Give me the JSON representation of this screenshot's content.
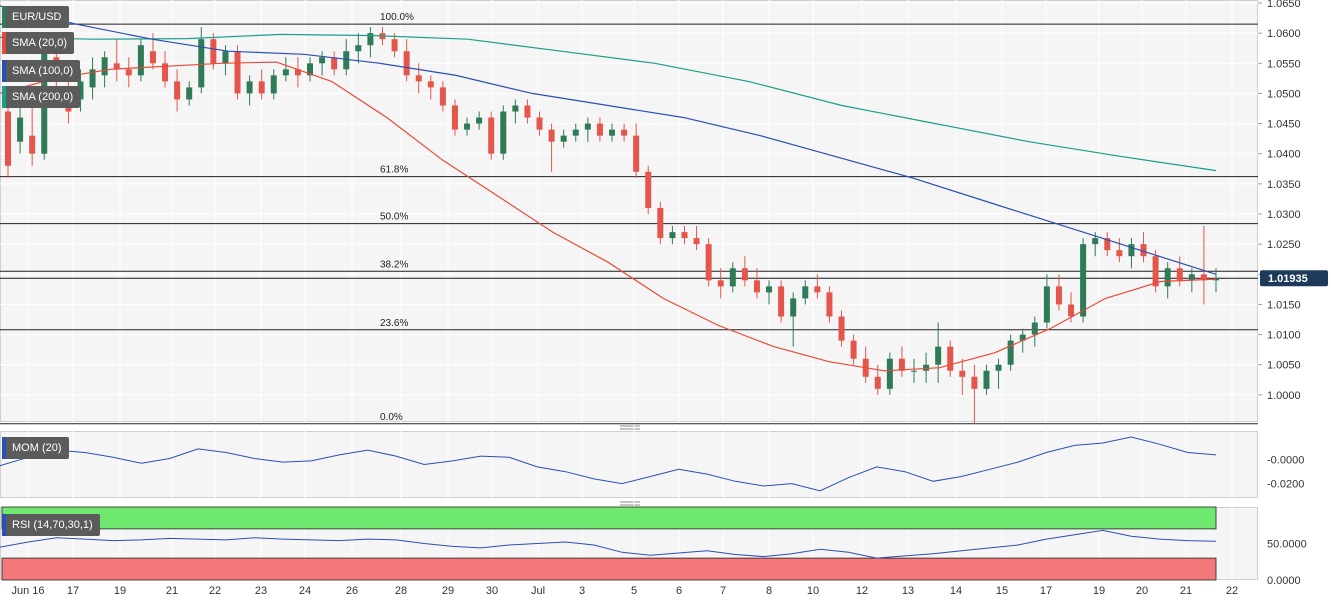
{
  "chart_data": [
    {
      "type": "candlestick",
      "symbol": "EUR/USD",
      "price_label": "1.01935",
      "last_price": 1.01935,
      "ylim": [
        0.9955,
        1.0655
      ],
      "y_ticks": [
        "1.0650",
        "1.0600",
        "1.0550",
        "1.0500",
        "1.0450",
        "1.0400",
        "1.0350",
        "1.0300",
        "1.0250",
        "1.0200",
        "1.0150",
        "1.0100",
        "1.0050",
        "1.0000"
      ],
      "x_labels": [
        "Jun 16",
        "17",
        "19",
        "21",
        "22",
        "23",
        "24",
        "26",
        "28",
        "29",
        "30",
        "Jul",
        "3",
        "5",
        "6",
        "7",
        "8",
        "10",
        "12",
        "13",
        "14",
        "15",
        "17",
        "19",
        "20",
        "21",
        "22"
      ],
      "legend": [
        {
          "label": "SMA (20,0)",
          "color": "#e8493a"
        },
        {
          "label": "SMA (100,0)",
          "color": "#2a4fb5"
        },
        {
          "label": "SMA (200,0)",
          "color": "#1b9e8a"
        }
      ],
      "fibonacci": [
        {
          "label": "100.0%",
          "price": 1.0615
        },
        {
          "label": "61.8%",
          "price": 1.0362
        },
        {
          "label": "50.0%",
          "price": 1.0284
        },
        {
          "label": "38.2%",
          "price": 1.0205
        },
        {
          "label": "23.6%",
          "price": 1.0108
        },
        {
          "label": "0.0%",
          "price": 0.9952
        }
      ],
      "ohlc": [
        [
          1.047,
          1.049,
          1.036,
          1.038
        ],
        [
          1.042,
          1.05,
          1.04,
          1.046
        ],
        [
          1.043,
          1.048,
          1.038,
          1.04
        ],
        [
          1.04,
          1.06,
          1.039,
          1.058
        ],
        [
          1.056,
          1.06,
          1.05,
          1.052
        ],
        [
          1.051,
          1.054,
          1.045,
          1.047
        ],
        [
          1.049,
          1.054,
          1.047,
          1.052
        ],
        [
          1.051,
          1.056,
          1.049,
          1.054
        ],
        [
          1.053,
          1.057,
          1.051,
          1.056
        ],
        [
          1.055,
          1.059,
          1.052,
          1.054
        ],
        [
          1.054,
          1.056,
          1.051,
          1.053
        ],
        [
          1.053,
          1.059,
          1.052,
          1.058
        ],
        [
          1.057,
          1.06,
          1.054,
          1.055
        ],
        [
          1.055,
          1.057,
          1.051,
          1.052
        ],
        [
          1.052,
          1.054,
          1.047,
          1.049
        ],
        [
          1.049,
          1.052,
          1.048,
          1.051
        ],
        [
          1.051,
          1.061,
          1.05,
          1.059
        ],
        [
          1.059,
          1.06,
          1.054,
          1.055
        ],
        [
          1.055,
          1.058,
          1.053,
          1.057
        ],
        [
          1.057,
          1.058,
          1.049,
          1.05
        ],
        [
          1.05,
          1.053,
          1.048,
          1.052
        ],
        [
          1.052,
          1.054,
          1.049,
          1.05
        ],
        [
          1.05,
          1.054,
          1.049,
          1.053
        ],
        [
          1.053,
          1.056,
          1.052,
          1.054
        ],
        [
          1.054,
          1.056,
          1.051,
          1.053
        ],
        [
          1.053,
          1.056,
          1.052,
          1.055
        ],
        [
          1.055,
          1.057,
          1.053,
          1.056
        ],
        [
          1.056,
          1.057,
          1.053,
          1.054
        ],
        [
          1.054,
          1.059,
          1.053,
          1.057
        ],
        [
          1.057,
          1.06,
          1.055,
          1.058
        ],
        [
          1.058,
          1.061,
          1.056,
          1.06
        ],
        [
          1.06,
          1.061,
          1.058,
          1.059
        ],
        [
          1.059,
          1.06,
          1.056,
          1.057
        ],
        [
          1.057,
          1.059,
          1.052,
          1.053
        ],
        [
          1.053,
          1.055,
          1.05,
          1.052
        ],
        [
          1.052,
          1.053,
          1.049,
          1.051
        ],
        [
          1.051,
          1.052,
          1.047,
          1.048
        ],
        [
          1.048,
          1.049,
          1.043,
          1.044
        ],
        [
          1.044,
          1.046,
          1.043,
          1.045
        ],
        [
          1.045,
          1.047,
          1.044,
          1.046
        ],
        [
          1.046,
          1.047,
          1.039,
          1.04
        ],
        [
          1.04,
          1.048,
          1.039,
          1.047
        ],
        [
          1.047,
          1.049,
          1.045,
          1.048
        ],
        [
          1.048,
          1.049,
          1.045,
          1.046
        ],
        [
          1.046,
          1.047,
          1.043,
          1.044
        ],
        [
          1.044,
          1.045,
          1.037,
          1.042
        ],
        [
          1.042,
          1.044,
          1.041,
          1.043
        ],
        [
          1.043,
          1.045,
          1.042,
          1.044
        ],
        [
          1.044,
          1.046,
          1.042,
          1.045
        ],
        [
          1.045,
          1.046,
          1.042,
          1.043
        ],
        [
          1.043,
          1.045,
          1.042,
          1.044
        ],
        [
          1.044,
          1.045,
          1.042,
          1.043
        ],
        [
          1.043,
          1.045,
          1.036,
          1.037
        ],
        [
          1.037,
          1.038,
          1.03,
          1.031
        ],
        [
          1.031,
          1.032,
          1.025,
          1.026
        ],
        [
          1.026,
          1.028,
          1.025,
          1.027
        ],
        [
          1.027,
          1.028,
          1.025,
          1.026
        ],
        [
          1.026,
          1.028,
          1.024,
          1.025
        ],
        [
          1.025,
          1.026,
          1.018,
          1.019
        ],
        [
          1.019,
          1.021,
          1.016,
          1.018
        ],
        [
          1.018,
          1.022,
          1.017,
          1.021
        ],
        [
          1.021,
          1.023,
          1.018,
          1.019
        ],
        [
          1.019,
          1.021,
          1.016,
          1.017
        ],
        [
          1.017,
          1.019,
          1.015,
          1.018
        ],
        [
          1.018,
          1.019,
          1.012,
          1.013
        ],
        [
          1.013,
          1.017,
          1.008,
          1.016
        ],
        [
          1.016,
          1.019,
          1.015,
          1.018
        ],
        [
          1.018,
          1.02,
          1.016,
          1.017
        ],
        [
          1.017,
          1.018,
          1.012,
          1.013
        ],
        [
          1.013,
          1.014,
          1.008,
          1.009
        ],
        [
          1.009,
          1.01,
          1.005,
          1.006
        ],
        [
          1.006,
          1.008,
          1.002,
          1.003
        ],
        [
          1.003,
          1.005,
          1.0,
          1.001
        ],
        [
          1.001,
          1.007,
          1.0,
          1.006
        ],
        [
          1.006,
          1.008,
          1.003,
          1.004
        ],
        [
          1.004,
          1.006,
          1.002,
          1.004
        ],
        [
          1.004,
          1.007,
          1.002,
          1.005
        ],
        [
          1.005,
          1.012,
          1.002,
          1.008
        ],
        [
          1.008,
          1.009,
          1.003,
          1.004
        ],
        [
          1.004,
          1.006,
          1.0,
          1.003
        ],
        [
          1.003,
          1.005,
          0.9952,
          1.001
        ],
        [
          1.001,
          1.005,
          1.0,
          1.004
        ],
        [
          1.004,
          1.006,
          1.001,
          1.005
        ],
        [
          1.005,
          1.01,
          1.004,
          1.009
        ],
        [
          1.009,
          1.011,
          1.007,
          1.01
        ],
        [
          1.01,
          1.013,
          1.008,
          1.012
        ],
        [
          1.012,
          1.02,
          1.011,
          1.018
        ],
        [
          1.018,
          1.02,
          1.014,
          1.015
        ],
        [
          1.015,
          1.017,
          1.012,
          1.013
        ],
        [
          1.013,
          1.026,
          1.012,
          1.025
        ],
        [
          1.025,
          1.027,
          1.023,
          1.026
        ],
        [
          1.026,
          1.027,
          1.023,
          1.024
        ],
        [
          1.024,
          1.026,
          1.022,
          1.023
        ],
        [
          1.023,
          1.026,
          1.021,
          1.025
        ],
        [
          1.025,
          1.027,
          1.022,
          1.023
        ],
        [
          1.023,
          1.024,
          1.017,
          1.018
        ],
        [
          1.018,
          1.022,
          1.016,
          1.021
        ],
        [
          1.021,
          1.023,
          1.018,
          1.019
        ],
        [
          1.019,
          1.021,
          1.017,
          1.02
        ],
        [
          1.02,
          1.028,
          1.015,
          1.019
        ],
        [
          1.019,
          1.021,
          1.017,
          1.01935
        ]
      ],
      "sma20": [
        1.05,
        1.0525,
        1.054,
        1.0545,
        1.055,
        1.0552,
        1.052,
        1.046,
        1.039,
        1.033,
        1.027,
        1.022,
        1.016,
        1.0115,
        1.008,
        1.0055,
        1.004,
        1.0045,
        1.007,
        1.011,
        1.016,
        1.0188,
        1.0192
      ],
      "sma100": [
        1.0645,
        1.0615,
        1.059,
        1.057,
        1.0565,
        1.055,
        1.053,
        1.05,
        1.048,
        1.046,
        1.043,
        1.0395,
        1.036,
        1.032,
        1.028,
        1.024,
        1.02
      ],
      "sma200": [
        1.0593,
        1.059,
        1.0591,
        1.0598,
        1.0596,
        1.059,
        1.057,
        1.055,
        1.052,
        1.048,
        1.045,
        1.042,
        1.0395,
        1.0372
      ]
    },
    {
      "type": "line",
      "title": "MOM (20)",
      "y_ticks": [
        "-0.0000",
        "-0.0200"
      ],
      "ylim": [
        -0.032,
        0.024
      ],
      "values": [
        -0.005,
        0.002,
        0.008,
        0.006,
        0.002,
        -0.003,
        0.001,
        0.009,
        0.006,
        0.001,
        -0.002,
        -0.001,
        0.004,
        0.008,
        0.003,
        -0.004,
        -0.001,
        0.003,
        0.002,
        -0.006,
        -0.01,
        -0.016,
        -0.02,
        -0.014,
        -0.008,
        -0.012,
        -0.018,
        -0.022,
        -0.02,
        -0.026,
        -0.015,
        -0.006,
        -0.01,
        -0.018,
        -0.014,
        -0.008,
        -0.002,
        0.006,
        0.012,
        0.014,
        0.019,
        0.013,
        0.006,
        0.004
      ]
    },
    {
      "type": "line",
      "title": "RSI (14,70,30,1)",
      "y_ticks": [
        "50.0000",
        "0.0000"
      ],
      "ylim": [
        0,
        100
      ],
      "bands": [
        {
          "from": 70,
          "to": 100,
          "color": "#6fe870"
        },
        {
          "from": 0,
          "to": 30,
          "color": "#f2787a"
        }
      ],
      "values": [
        45,
        52,
        58,
        56,
        54,
        55,
        57,
        56,
        55,
        58,
        56,
        55,
        54,
        56,
        55,
        50,
        46,
        44,
        48,
        50,
        52,
        48,
        38,
        34,
        37,
        40,
        35,
        32,
        36,
        42,
        38,
        30,
        33,
        36,
        40,
        44,
        48,
        56,
        62,
        68,
        60,
        56,
        54,
        53
      ]
    }
  ]
}
